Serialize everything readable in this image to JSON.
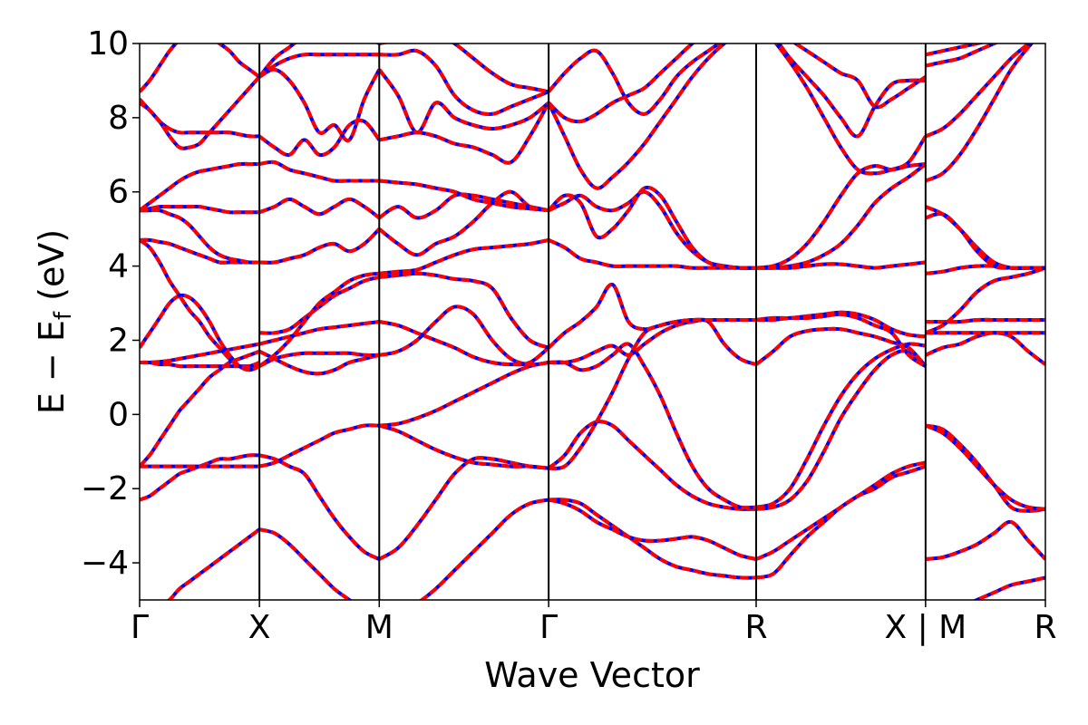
{
  "chart_data": {
    "type": "line",
    "title": "",
    "xlabel": "Wave Vector",
    "ylabel_main": "E − E",
    "ylabel_sub": "f",
    "ylabel_unit": "(eV)",
    "ylim": [
      -5,
      10
    ],
    "yticks": [
      10,
      8,
      6,
      4,
      2,
      0,
      -2,
      -4
    ],
    "ytick_labels": [
      "10",
      "8",
      "6",
      "4",
      "2",
      "0",
      "−2",
      "−4"
    ],
    "kpoints": [
      {
        "label": "Γ",
        "x": 0
      },
      {
        "label": "X",
        "x": 0.5
      },
      {
        "label": "M",
        "x": 1.0
      },
      {
        "label": "Γ",
        "x": 1.707
      },
      {
        "label": "R",
        "x": 2.573
      },
      {
        "label": "X | M",
        "x": 3.28
      },
      {
        "label": "R",
        "x": 3.78
      }
    ],
    "xlim": [
      0,
      3.78
    ],
    "colors": {
      "dft": "#0000ff",
      "model": "#ff0000"
    },
    "style": {
      "dft": "solid",
      "model": "dashed"
    },
    "segments": [
      {
        "from": "Γ",
        "to": "X",
        "bands": [
          [
            -5.6,
            -5.4,
            -5.2,
            -5.0,
            -4.7,
            -4.5,
            -4.3,
            -4.1,
            -3.9,
            -3.7,
            -3.5,
            -3.3,
            -3.1
          ],
          [
            -2.3,
            -2.2,
            -2.0,
            -1.8,
            -1.6,
            -1.5,
            -1.4,
            -1.3,
            -1.2,
            -1.2,
            -1.15,
            -1.1,
            -1.1
          ],
          [
            -1.4,
            -1.4,
            -1.4,
            -1.4,
            -1.4,
            -1.4,
            -1.4,
            -1.4,
            -1.4,
            -1.4,
            -1.4,
            -1.4,
            -1.4
          ],
          [
            -1.4,
            -1.1,
            -0.7,
            -0.3,
            0.1,
            0.4,
            0.7,
            1.0,
            1.2,
            1.4,
            1.5,
            1.6,
            1.7
          ],
          [
            1.4,
            1.4,
            1.35,
            1.35,
            1.3,
            1.3,
            1.3,
            1.3,
            1.3,
            1.3,
            1.3,
            1.3,
            1.3
          ],
          [
            1.4,
            1.4,
            1.42,
            1.45,
            1.5,
            1.55,
            1.6,
            1.65,
            1.7,
            1.75,
            1.8,
            1.85,
            1.9
          ],
          [
            1.8,
            2.2,
            2.6,
            3.0,
            3.2,
            3.15,
            2.9,
            2.5,
            2.0,
            1.6,
            1.3,
            1.2,
            1.3
          ],
          [
            4.7,
            4.5,
            4.1,
            3.6,
            3.2,
            2.8,
            2.5,
            2.1,
            1.8,
            1.5,
            1.3,
            1.3,
            1.4
          ],
          [
            4.7,
            4.7,
            4.65,
            4.6,
            4.5,
            4.4,
            4.3,
            4.2,
            4.1,
            4.1,
            4.1,
            4.1,
            4.1
          ],
          [
            5.5,
            5.5,
            5.5,
            5.4,
            5.3,
            5.1,
            4.8,
            4.5,
            4.3,
            4.2,
            4.15,
            4.1,
            4.1
          ],
          [
            5.5,
            5.7,
            5.9,
            6.1,
            6.3,
            6.45,
            6.55,
            6.6,
            6.65,
            6.7,
            6.75,
            6.75,
            6.75
          ],
          [
            5.5,
            5.55,
            5.6,
            5.6,
            5.6,
            5.6,
            5.6,
            5.55,
            5.5,
            5.45,
            5.45,
            5.45,
            5.45
          ],
          [
            8.4,
            8.2,
            7.9,
            7.7,
            7.6,
            7.6,
            7.6,
            7.6,
            7.6,
            7.6,
            7.55,
            7.5,
            7.5
          ],
          [
            8.5,
            8.2,
            7.9,
            7.5,
            7.2,
            7.2,
            7.3,
            7.6,
            7.9,
            8.2,
            8.5,
            8.8,
            9.1
          ],
          [
            8.7,
            9.0,
            9.4,
            9.8,
            10.1,
            10.3,
            10.3,
            10.2,
            10.0,
            9.8,
            9.5,
            9.3,
            9.1
          ]
        ]
      },
      {
        "from": "X",
        "to": "M",
        "bands": [
          [
            -3.1,
            -3.2,
            -3.5,
            -3.9,
            -4.3,
            -4.7,
            -5.0,
            -5.3,
            -5.6
          ],
          [
            -1.1,
            -1.2,
            -1.4,
            -1.6,
            -2.2,
            -2.8,
            -3.3,
            -3.7,
            -3.9
          ],
          [
            -1.4,
            -1.3,
            -1.1,
            -0.9,
            -0.7,
            -0.5,
            -0.4,
            -0.3,
            -0.3
          ],
          [
            1.7,
            1.5,
            1.3,
            1.15,
            1.1,
            1.2,
            1.4,
            1.5,
            1.6
          ],
          [
            1.3,
            1.5,
            1.6,
            1.65,
            1.65,
            1.65,
            1.65,
            1.6,
            1.6
          ],
          [
            1.9,
            2.0,
            2.1,
            2.2,
            2.3,
            2.35,
            2.4,
            2.45,
            2.5
          ],
          [
            2.2,
            2.2,
            2.3,
            2.6,
            2.9,
            3.2,
            3.4,
            3.6,
            3.7
          ],
          [
            1.3,
            1.6,
            2.0,
            2.5,
            3.0,
            3.3,
            3.6,
            3.75,
            3.8
          ],
          [
            4.1,
            4.1,
            4.2,
            4.3,
            4.5,
            4.6,
            4.4,
            4.6,
            5.0
          ],
          [
            5.45,
            5.6,
            5.8,
            5.6,
            5.4,
            5.6,
            5.8,
            5.6,
            5.3
          ],
          [
            6.75,
            6.8,
            6.6,
            6.5,
            6.4,
            6.3,
            6.3,
            6.3,
            6.3
          ],
          [
            7.5,
            7.2,
            7.0,
            7.4,
            7.0,
            7.2,
            7.8,
            7.9,
            7.4
          ],
          [
            9.1,
            9.3,
            9.0,
            8.4,
            7.6,
            7.8,
            7.4,
            8.5,
            9.3
          ],
          [
            9.1,
            9.4,
            9.6,
            9.7,
            9.7,
            9.7,
            9.7,
            9.7,
            9.7
          ],
          [
            9.1,
            9.6,
            9.9,
            10.2,
            10.4,
            10.5,
            10.4,
            10.2,
            10.0
          ]
        ]
      },
      {
        "from": "M",
        "to": "Γ",
        "bands": [
          [
            -5.6,
            -5.4,
            -5.1,
            -4.7,
            -4.2,
            -3.7,
            -3.2,
            -2.7,
            -2.4,
            -2.3
          ],
          [
            -3.9,
            -3.6,
            -3.0,
            -2.3,
            -1.6,
            -1.2,
            -1.2,
            -1.3,
            -1.4,
            -1.45
          ],
          [
            -0.3,
            -0.45,
            -0.7,
            -0.95,
            -1.15,
            -1.3,
            -1.35,
            -1.4,
            -1.4,
            -1.45
          ],
          [
            -0.3,
            -0.25,
            -0.1,
            0.1,
            0.35,
            0.6,
            0.85,
            1.1,
            1.3,
            1.4
          ],
          [
            1.6,
            1.7,
            2.0,
            2.5,
            2.9,
            2.7,
            2.0,
            1.5,
            1.35,
            1.4
          ],
          [
            2.5,
            2.4,
            2.2,
            2.0,
            1.8,
            1.55,
            1.4,
            1.35,
            1.4,
            1.8
          ],
          [
            3.7,
            3.75,
            3.8,
            3.75,
            3.65,
            3.6,
            3.4,
            2.6,
            2.0,
            1.8
          ],
          [
            3.8,
            3.85,
            3.9,
            4.1,
            4.3,
            4.45,
            4.5,
            4.55,
            4.6,
            4.7
          ],
          [
            5.0,
            4.6,
            4.3,
            4.6,
            4.8,
            5.2,
            5.7,
            6.0,
            5.6,
            5.5
          ],
          [
            5.3,
            5.6,
            5.3,
            5.5,
            5.9,
            5.9,
            5.8,
            5.7,
            5.6,
            5.5
          ],
          [
            6.3,
            6.25,
            6.2,
            6.1,
            6.0,
            5.8,
            5.7,
            5.6,
            5.55,
            5.5
          ],
          [
            7.4,
            7.5,
            7.6,
            7.5,
            7.3,
            7.2,
            7.0,
            6.8,
            7.5,
            8.4
          ],
          [
            9.3,
            8.6,
            7.6,
            8.4,
            8.0,
            7.8,
            7.7,
            7.8,
            8.0,
            8.4
          ],
          [
            9.7,
            9.7,
            9.8,
            9.4,
            8.6,
            8.2,
            8.1,
            8.3,
            8.5,
            8.7
          ],
          [
            10.0,
            10.1,
            10.2,
            10.3,
            10.0,
            9.6,
            9.2,
            8.9,
            8.8,
            8.7
          ]
        ]
      },
      {
        "from": "Γ",
        "to": "R",
        "bands": [
          [
            -2.3,
            -2.3,
            -2.4,
            -2.7,
            -3.0,
            -3.3,
            -3.6,
            -3.9,
            -4.1,
            -4.2,
            -4.3,
            -4.35,
            -4.4,
            -4.4
          ],
          [
            -2.3,
            -2.4,
            -2.6,
            -2.9,
            -3.1,
            -3.3,
            -3.4,
            -3.4,
            -3.35,
            -3.3,
            -3.4,
            -3.6,
            -3.8,
            -3.9
          ],
          [
            -1.45,
            -1.1,
            -0.5,
            -0.2,
            -0.3,
            -0.7,
            -1.1,
            -1.5,
            -1.9,
            -2.2,
            -2.4,
            -2.5,
            -2.55,
            -2.55
          ],
          [
            -1.45,
            -1.4,
            -0.9,
            -0.2,
            0.6,
            1.5,
            2.2,
            2.4,
            2.5,
            2.55,
            2.55,
            2.55,
            2.55,
            2.55
          ],
          [
            1.4,
            1.4,
            1.2,
            1.3,
            1.6,
            1.9,
            1.3,
            0.5,
            -0.5,
            -1.4,
            -2.0,
            -2.3,
            -2.5,
            -2.5
          ],
          [
            1.4,
            1.4,
            1.5,
            1.7,
            1.85,
            1.6,
            1.9,
            2.2,
            2.4,
            2.5,
            2.5,
            1.9,
            1.5,
            1.35
          ],
          [
            1.8,
            2.2,
            2.5,
            2.9,
            3.5,
            2.5,
            2.3,
            2.4,
            2.5,
            2.55,
            2.55,
            2.55,
            2.55,
            2.55
          ],
          [
            4.7,
            4.5,
            4.2,
            4.1,
            4.0,
            4.0,
            4.0,
            4.0,
            4.0,
            3.95,
            3.95,
            3.95,
            3.95,
            3.95
          ],
          [
            5.5,
            5.7,
            5.9,
            5.6,
            5.5,
            5.7,
            6.0,
            5.6,
            4.9,
            4.4,
            4.1,
            4.0,
            3.95,
            3.95
          ],
          [
            5.5,
            5.9,
            5.7,
            4.8,
            5.0,
            5.5,
            6.1,
            5.9,
            5.2,
            4.5,
            4.1,
            4.0,
            3.95,
            3.95
          ],
          [
            8.4,
            8.0,
            7.9,
            8.1,
            8.4,
            8.6,
            8.8,
            9.2,
            9.6,
            10.0,
            10.3,
            10.5,
            10.6,
            10.6
          ],
          [
            8.4,
            7.5,
            6.6,
            6.1,
            6.4,
            6.8,
            7.3,
            7.9,
            8.5,
            9.1,
            9.6,
            10.0,
            10.3,
            10.6
          ],
          [
            8.7,
            9.2,
            9.6,
            9.8,
            9.2,
            8.4,
            8.1,
            8.5,
            9.1,
            9.5,
            9.8,
            10.1,
            10.4,
            10.6
          ]
        ]
      },
      {
        "from": "R",
        "to": "X",
        "bands": [
          [
            -4.4,
            -4.3,
            -3.8,
            -3.3,
            -2.9,
            -2.5,
            -2.2,
            -1.9,
            -1.6,
            -1.4,
            -1.3
          ],
          [
            -3.9,
            -3.7,
            -3.4,
            -3.1,
            -2.8,
            -2.5,
            -2.2,
            -2.0,
            -1.7,
            -1.55,
            -1.4
          ],
          [
            -2.55,
            -2.5,
            -2.3,
            -1.8,
            -1.0,
            -0.1,
            0.6,
            1.2,
            1.6,
            1.7,
            1.3
          ],
          [
            -2.5,
            -2.4,
            -2.0,
            -1.2,
            -0.3,
            0.5,
            1.1,
            1.5,
            1.75,
            1.9,
            1.85
          ],
          [
            1.35,
            1.7,
            2.1,
            2.25,
            2.3,
            2.3,
            2.2,
            2.1,
            1.95,
            1.8,
            1.3
          ],
          [
            2.55,
            2.55,
            2.6,
            2.6,
            2.65,
            2.7,
            2.6,
            2.4,
            2.2,
            1.6,
            1.3
          ],
          [
            2.55,
            2.6,
            2.6,
            2.65,
            2.7,
            2.75,
            2.7,
            2.55,
            2.3,
            2.15,
            2.1
          ],
          [
            3.95,
            3.95,
            3.95,
            4.0,
            4.05,
            4.05,
            4.0,
            3.95,
            4.0,
            4.05,
            4.1
          ],
          [
            3.95,
            3.95,
            4.0,
            4.1,
            4.3,
            4.6,
            5.1,
            5.7,
            6.1,
            6.4,
            6.75
          ],
          [
            3.95,
            4.0,
            4.2,
            4.6,
            5.2,
            5.9,
            6.5,
            6.7,
            6.6,
            6.7,
            6.75
          ],
          [
            10.6,
            10.1,
            9.5,
            8.8,
            8.0,
            7.2,
            6.6,
            6.5,
            6.6,
            6.8,
            7.5
          ],
          [
            10.6,
            10.2,
            9.6,
            9.1,
            8.6,
            8.0,
            7.5,
            8.3,
            8.9,
            9.0,
            9.0
          ],
          [
            10.6,
            10.4,
            10.1,
            9.8,
            9.5,
            9.2,
            9.0,
            8.3,
            8.5,
            8.8,
            9.1
          ]
        ]
      },
      {
        "from": "M",
        "to": "R",
        "bands": [
          [
            -5.6,
            -5.4,
            -5.2,
            -5.0,
            -4.8,
            -4.6,
            -4.5,
            -4.4
          ],
          [
            -3.9,
            -3.85,
            -3.7,
            -3.5,
            -3.2,
            -2.9,
            -3.4,
            -3.9
          ],
          [
            -0.3,
            -0.4,
            -0.8,
            -1.3,
            -1.9,
            -2.5,
            -2.6,
            -2.55
          ],
          [
            -0.3,
            -0.5,
            -0.9,
            -1.4,
            -1.9,
            -2.3,
            -2.5,
            -2.55
          ],
          [
            1.6,
            1.8,
            1.9,
            2.1,
            2.2,
            2.1,
            1.7,
            1.35
          ],
          [
            2.2,
            2.2,
            2.2,
            2.2,
            2.2,
            2.2,
            2.2,
            2.2
          ],
          [
            2.5,
            2.5,
            2.5,
            2.55,
            2.55,
            2.55,
            2.55,
            2.55
          ],
          [
            2.2,
            2.4,
            2.8,
            3.3,
            3.6,
            3.7,
            3.8,
            3.95
          ],
          [
            3.8,
            3.85,
            3.95,
            4.0,
            4.0,
            3.95,
            3.95,
            3.95
          ],
          [
            5.3,
            5.4,
            5.0,
            4.4,
            4.0,
            3.95,
            3.95,
            3.95
          ],
          [
            5.6,
            5.4,
            5.0,
            4.5,
            4.1,
            3.95,
            3.95,
            3.95
          ],
          [
            6.3,
            6.5,
            7.0,
            7.7,
            8.5,
            9.3,
            9.9,
            10.4
          ],
          [
            7.5,
            7.7,
            8.1,
            8.6,
            9.1,
            9.6,
            10.0,
            10.5
          ],
          [
            9.4,
            9.5,
            9.6,
            9.8,
            10.0,
            10.2,
            10.4,
            10.6
          ],
          [
            9.7,
            9.8,
            9.9,
            10.0,
            10.1,
            10.2,
            10.3,
            10.4
          ]
        ]
      }
    ]
  }
}
